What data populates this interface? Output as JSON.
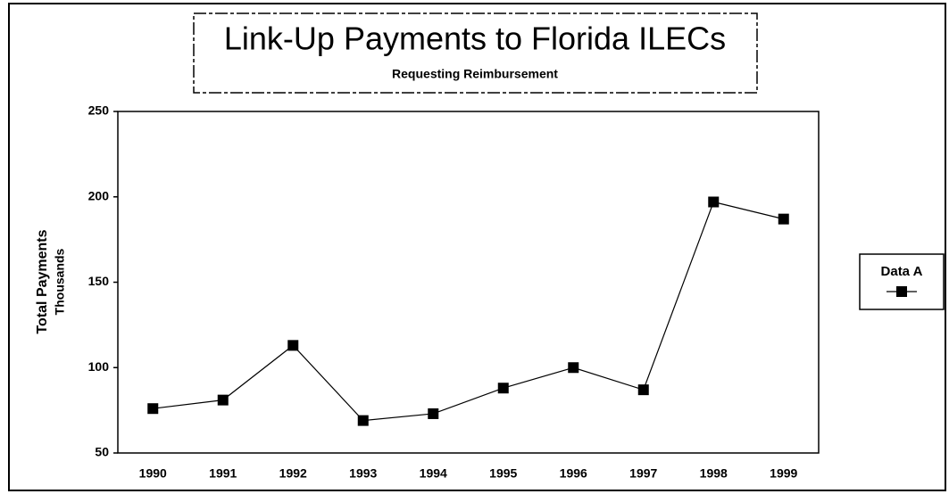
{
  "chart_data": {
    "type": "line",
    "title": "Link-Up Payments to Florida ILECs",
    "subtitle": "Requesting Reimbursement",
    "y_label": "Total Payments",
    "y_sublabel": "Thousands",
    "categories": [
      "1990",
      "1991",
      "1992",
      "1993",
      "1994",
      "1995",
      "1996",
      "1997",
      "1998",
      "1999"
    ],
    "series": [
      {
        "name": "Data A",
        "color": "#000000",
        "values": [
          76,
          81,
          113,
          69,
          73,
          88,
          100,
          87,
          197,
          187
        ]
      }
    ],
    "ylim": [
      50,
      250
    ],
    "yticks": [
      50,
      100,
      150,
      200,
      250
    ],
    "grid": false,
    "legend": "right"
  }
}
